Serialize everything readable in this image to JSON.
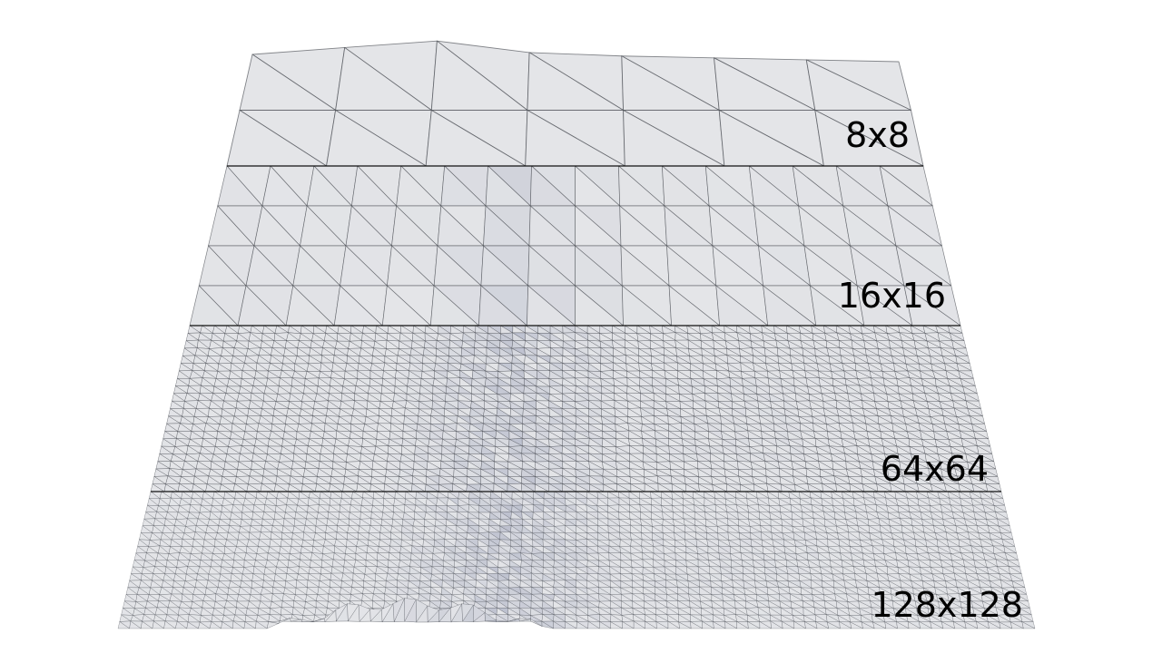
{
  "bands": [
    {
      "label": "8x8",
      "resolution": 8
    },
    {
      "label": "16x16",
      "resolution": 16
    },
    {
      "label": "64x64",
      "resolution": 64
    },
    {
      "label": "128x128",
      "resolution": 128
    }
  ],
  "colors": {
    "surface": "#e4e5e8",
    "wire": "#3a3d45",
    "shade": "#9aa0b8",
    "separator": "#111111",
    "label": "#000000"
  }
}
